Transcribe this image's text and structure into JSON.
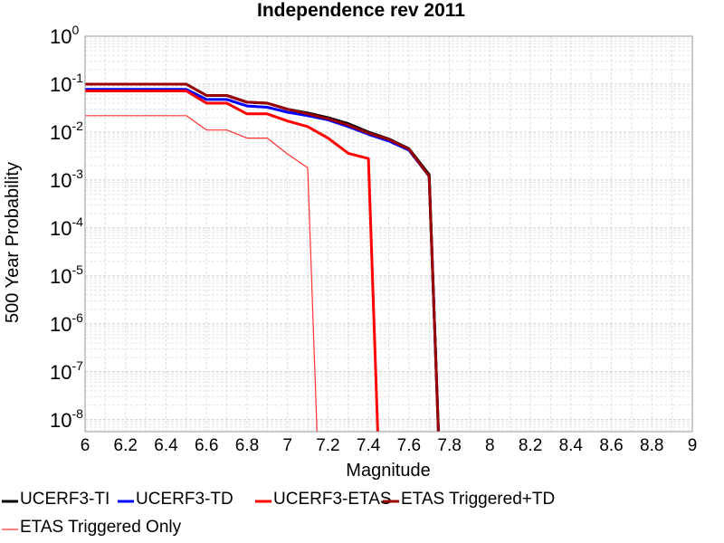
{
  "chart_data": {
    "type": "line",
    "title": "Independence rev 2011",
    "xlabel": "Magnitude",
    "ylabel": "500 Year Probability",
    "xlim": [
      6,
      9
    ],
    "ylim_exponent": [
      -8.25,
      0
    ],
    "yscale": "log",
    "grid": true,
    "legend_placement": "bottom",
    "x_ticks": [
      "6",
      "6.2",
      "6.4",
      "6.6",
      "6.8",
      "7",
      "7.2",
      "7.4",
      "7.6",
      "7.8",
      "8",
      "8.2",
      "8.4",
      "8.6",
      "8.8",
      "9"
    ],
    "y_ticks": [
      {
        "base": "10",
        "exp": "0",
        "value": 0
      },
      {
        "base": "10",
        "exp": "-1",
        "value": -1
      },
      {
        "base": "10",
        "exp": "-2",
        "value": -2
      },
      {
        "base": "10",
        "exp": "-3",
        "value": -3
      },
      {
        "base": "10",
        "exp": "-4",
        "value": -4
      },
      {
        "base": "10",
        "exp": "-5",
        "value": -5
      },
      {
        "base": "10",
        "exp": "-6",
        "value": -6
      },
      {
        "base": "10",
        "exp": "-7",
        "value": -7
      },
      {
        "base": "10",
        "exp": "-8",
        "value": -8
      }
    ],
    "series": [
      {
        "name": "UCERF3-TI",
        "color": "#000000",
        "width": 3,
        "x": [
          6.0,
          6.5,
          6.6,
          6.7,
          6.8,
          6.9,
          7.0,
          7.1,
          7.2,
          7.3,
          7.4,
          7.5,
          7.6,
          7.7,
          7.75
        ],
        "y": [
          0.1,
          0.1,
          0.058,
          0.058,
          0.042,
          0.04,
          0.03,
          0.025,
          0.02,
          0.015,
          0.01,
          0.0072,
          0.0045,
          0.0013,
          1e-09
        ]
      },
      {
        "name": "UCERF3-TD",
        "color": "#0000ff",
        "width": 3,
        "x": [
          6.0,
          6.5,
          6.6,
          6.7,
          6.8,
          6.9,
          7.0,
          7.1,
          7.2,
          7.3,
          7.4,
          7.5,
          7.6,
          7.7,
          7.75
        ],
        "y": [
          0.078,
          0.078,
          0.048,
          0.048,
          0.035,
          0.033,
          0.026,
          0.022,
          0.018,
          0.013,
          0.009,
          0.0065,
          0.0042,
          0.0012,
          1e-09
        ]
      },
      {
        "name": "UCERF3-ETAS",
        "color": "#ff0000",
        "width": 3,
        "x": [
          6.0,
          6.5,
          6.6,
          6.7,
          6.8,
          6.9,
          7.0,
          7.1,
          7.2,
          7.3,
          7.4,
          7.45
        ],
        "y": [
          0.072,
          0.072,
          0.04,
          0.04,
          0.024,
          0.024,
          0.017,
          0.013,
          0.0075,
          0.0036,
          0.0028,
          1e-09
        ]
      },
      {
        "name": "ETAS Triggered+TD",
        "color": "#990000",
        "width": 3,
        "x": [
          6.0,
          6.5,
          6.6,
          6.7,
          6.8,
          6.9,
          7.0,
          7.1,
          7.2,
          7.3,
          7.4,
          7.5,
          7.6,
          7.7,
          7.75
        ],
        "y": [
          0.1,
          0.1,
          0.058,
          0.058,
          0.042,
          0.04,
          0.03,
          0.024,
          0.019,
          0.014,
          0.0095,
          0.007,
          0.0044,
          0.0012,
          1e-09
        ]
      },
      {
        "name": "ETAS Triggered Only",
        "color": "#ff3333",
        "width": 1.2,
        "x": [
          6.0,
          6.5,
          6.6,
          6.7,
          6.8,
          6.9,
          7.0,
          7.1,
          7.15
        ],
        "y": [
          0.022,
          0.022,
          0.011,
          0.011,
          0.0075,
          0.0075,
          0.0035,
          0.0018,
          1e-09
        ]
      }
    ]
  }
}
